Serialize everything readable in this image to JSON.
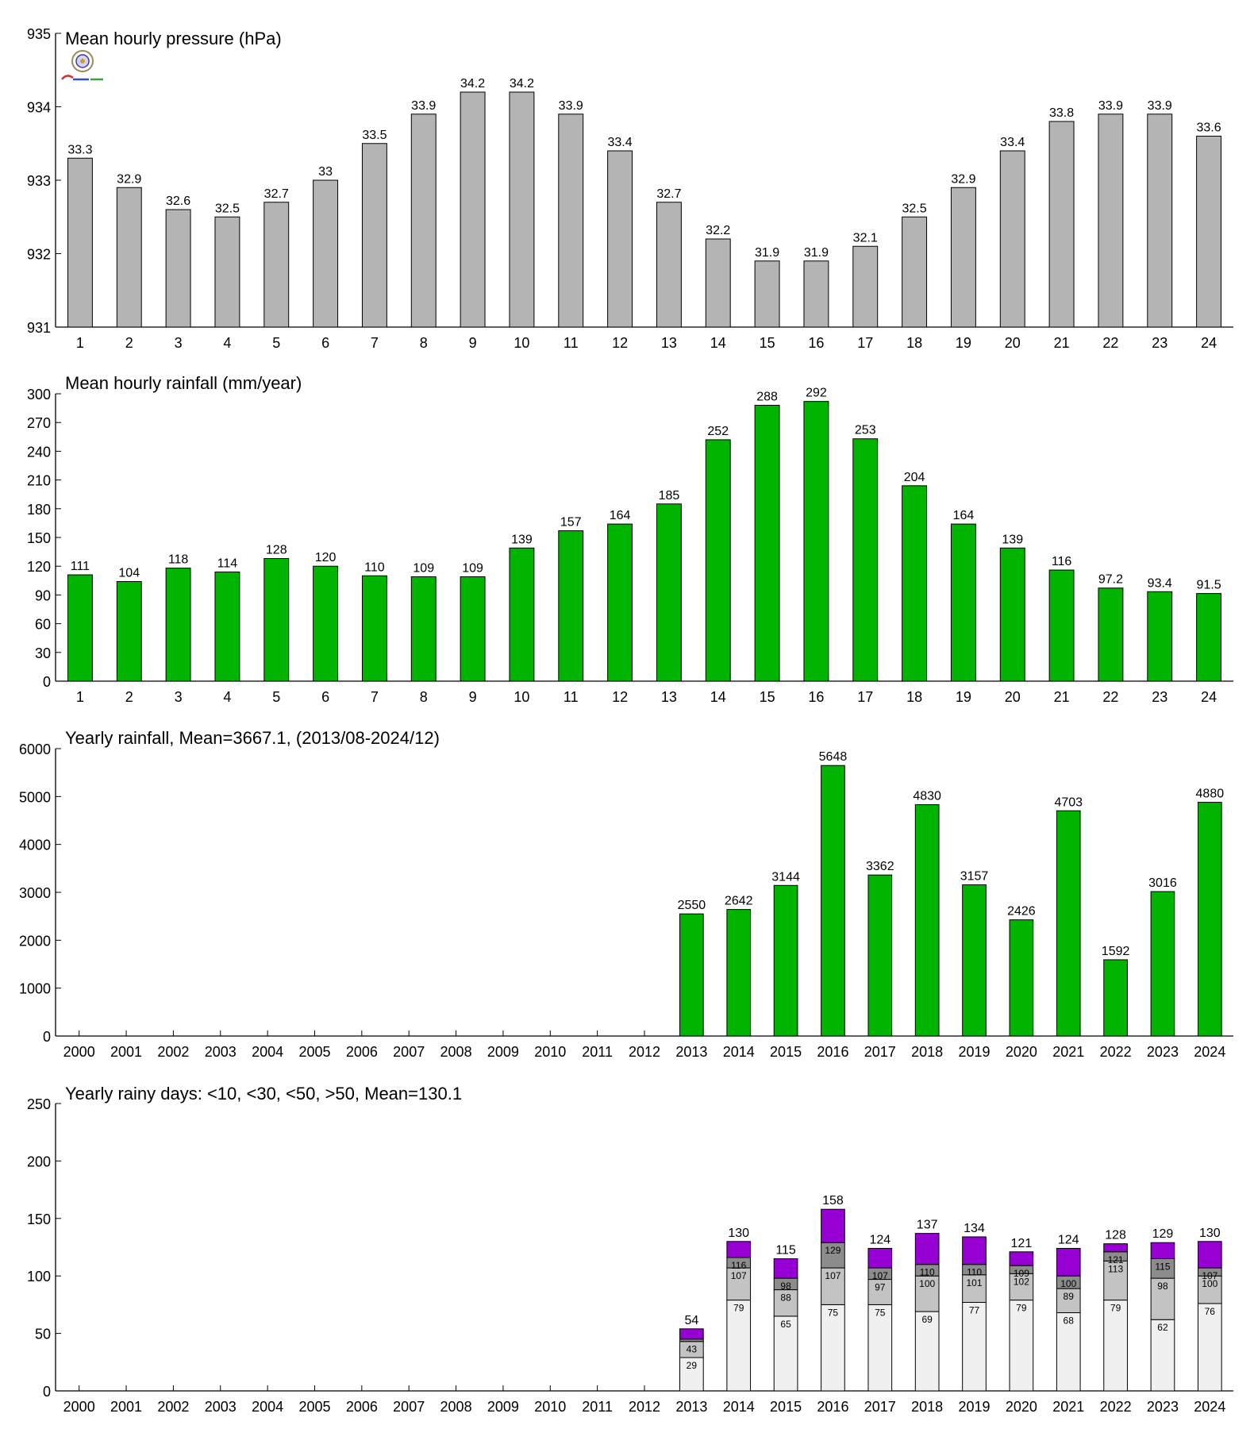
{
  "chart_data": [
    {
      "type": "bar",
      "title": "Mean hourly pressure (hPa)",
      "xlabel": "",
      "ylabel": "",
      "ylim": [
        931,
        935
      ],
      "yticks": [
        931,
        932,
        933,
        934,
        935
      ],
      "grid": false,
      "legend": "none",
      "color": "#b4b4b4",
      "categories": [
        "1",
        "2",
        "3",
        "4",
        "5",
        "6",
        "7",
        "8",
        "9",
        "10",
        "11",
        "12",
        "13",
        "14",
        "15",
        "16",
        "17",
        "18",
        "19",
        "20",
        "21",
        "22",
        "23",
        "24"
      ],
      "values": [
        933.3,
        932.9,
        932.6,
        932.5,
        932.7,
        933.0,
        933.5,
        933.9,
        934.2,
        934.2,
        933.9,
        933.4,
        932.7,
        932.2,
        931.9,
        931.9,
        932.1,
        932.5,
        932.9,
        933.4,
        933.8,
        933.9,
        933.9,
        933.6
      ],
      "data_labels": [
        "33.3",
        "32.9",
        "32.6",
        "32.5",
        "32.7",
        "33",
        "33.5",
        "33.9",
        "34.2",
        "34.2",
        "33.9",
        "33.4",
        "32.7",
        "32.2",
        "31.9",
        "31.9",
        "32.1",
        "32.5",
        "32.9",
        "33.4",
        "33.8",
        "33.9",
        "33.9",
        "33.6"
      ]
    },
    {
      "type": "bar",
      "title": "Mean hourly rainfall (mm/year)",
      "xlabel": "",
      "ylabel": "",
      "ylim": [
        0,
        300
      ],
      "yticks": [
        0,
        30,
        60,
        90,
        120,
        150,
        180,
        210,
        240,
        270,
        300
      ],
      "grid": false,
      "legend": "none",
      "color": "#00b400",
      "categories": [
        "1",
        "2",
        "3",
        "4",
        "5",
        "6",
        "7",
        "8",
        "9",
        "10",
        "11",
        "12",
        "13",
        "14",
        "15",
        "16",
        "17",
        "18",
        "19",
        "20",
        "21",
        "22",
        "23",
        "24"
      ],
      "values": [
        111,
        104,
        118,
        114,
        128,
        120,
        110,
        109,
        109,
        139,
        157,
        164,
        185,
        252,
        288,
        292,
        253,
        204,
        164,
        139,
        116,
        97.2,
        93.4,
        91.5
      ],
      "data_labels": [
        "111",
        "104",
        "118",
        "114",
        "128",
        "120",
        "110",
        "109",
        "109",
        "139",
        "157",
        "164",
        "185",
        "252",
        "288",
        "292",
        "253",
        "204",
        "164",
        "139",
        "116",
        "97.2",
        "93.4",
        "91.5"
      ]
    },
    {
      "type": "bar",
      "title": "Yearly rainfall, Mean=3667.1, (2013/08-2024/12)",
      "xlabel": "",
      "ylabel": "",
      "ylim": [
        0,
        6000
      ],
      "yticks": [
        0,
        1000,
        2000,
        3000,
        4000,
        5000,
        6000
      ],
      "grid": false,
      "legend": "none",
      "color": "#00b400",
      "categories": [
        "2000",
        "2001",
        "2002",
        "2003",
        "2004",
        "2005",
        "2006",
        "2007",
        "2008",
        "2009",
        "2010",
        "2011",
        "2012",
        "2013",
        "2014",
        "2015",
        "2016",
        "2017",
        "2018",
        "2019",
        "2020",
        "2021",
        "2022",
        "2023",
        "2024"
      ],
      "values": [
        null,
        null,
        null,
        null,
        null,
        null,
        null,
        null,
        null,
        null,
        null,
        null,
        null,
        2550,
        2642,
        3144,
        5648,
        3362,
        4830,
        3157,
        2426,
        4703,
        1592,
        3016,
        4880
      ],
      "data_labels": [
        "",
        "",
        "",
        "",
        "",
        "",
        "",
        "",
        "",
        "",
        "",
        "",
        "",
        "2550",
        "2642",
        "3144",
        "5648",
        "3362",
        "4830",
        "3157",
        "2426",
        "4703",
        "1592",
        "3016",
        "4880"
      ]
    },
    {
      "type": "bar",
      "stacked": true,
      "title": "Yearly rainy days: <10, <30, <50, >50, Mean=130.1",
      "xlabel": "",
      "ylabel": "",
      "ylim": [
        0,
        250
      ],
      "yticks": [
        0,
        50,
        100,
        150,
        200,
        250
      ],
      "grid": false,
      "legend": "none",
      "categories": [
        "2000",
        "2001",
        "2002",
        "2003",
        "2004",
        "2005",
        "2006",
        "2007",
        "2008",
        "2009",
        "2010",
        "2011",
        "2012",
        "2013",
        "2014",
        "2015",
        "2016",
        "2017",
        "2018",
        "2019",
        "2020",
        "2021",
        "2022",
        "2023",
        "2024"
      ],
      "cumulative_colors": [
        "#f0f0f0",
        "#c3c3c3",
        "#8c8c8c",
        "#9600d2"
      ],
      "cum_lt10": [
        null,
        null,
        null,
        null,
        null,
        null,
        null,
        null,
        null,
        null,
        null,
        null,
        null,
        29,
        79,
        65,
        75,
        75,
        69,
        77,
        79,
        68,
        79,
        62,
        76
      ],
      "cum_lt30": [
        null,
        null,
        null,
        null,
        null,
        null,
        null,
        null,
        null,
        null,
        null,
        null,
        null,
        43,
        107,
        88,
        107,
        97,
        100,
        101,
        102,
        89,
        113,
        98,
        100
      ],
      "cum_lt50": [
        null,
        null,
        null,
        null,
        null,
        null,
        null,
        null,
        null,
        null,
        null,
        null,
        null,
        45,
        116,
        98,
        129,
        107,
        110,
        110,
        109,
        100,
        121,
        115,
        107
      ],
      "total": [
        null,
        null,
        null,
        null,
        null,
        null,
        null,
        null,
        null,
        null,
        null,
        null,
        null,
        54,
        130,
        115,
        158,
        124,
        137,
        134,
        121,
        124,
        128,
        129,
        130
      ],
      "labels_lt10": [
        "",
        "",
        "",
        "",
        "",
        "",
        "",
        "",
        "",
        "",
        "",
        "",
        "",
        "29",
        "79",
        "65",
        "75",
        "75",
        "69",
        "77",
        "79",
        "68",
        "79",
        "62",
        "76"
      ],
      "labels_lt30": [
        "",
        "",
        "",
        "",
        "",
        "",
        "",
        "",
        "",
        "",
        "",
        "",
        "",
        "43",
        "107",
        "88",
        "107",
        "97",
        "100",
        "101",
        "102",
        "89",
        "113",
        "98",
        "100"
      ],
      "labels_lt50": [
        "",
        "",
        "",
        "",
        "",
        "",
        "",
        "",
        "",
        "",
        "",
        "",
        "",
        "",
        "116",
        "98",
        "129",
        "107",
        "110",
        "110",
        "109",
        "100",
        "121",
        "115",
        "107"
      ],
      "labels_total": [
        "",
        "",
        "",
        "",
        "",
        "",
        "",
        "",
        "",
        "",
        "",
        "",
        "",
        "54",
        "130",
        "115",
        "158",
        "124",
        "137",
        "134",
        "121",
        "124",
        "128",
        "129",
        "130"
      ]
    }
  ]
}
